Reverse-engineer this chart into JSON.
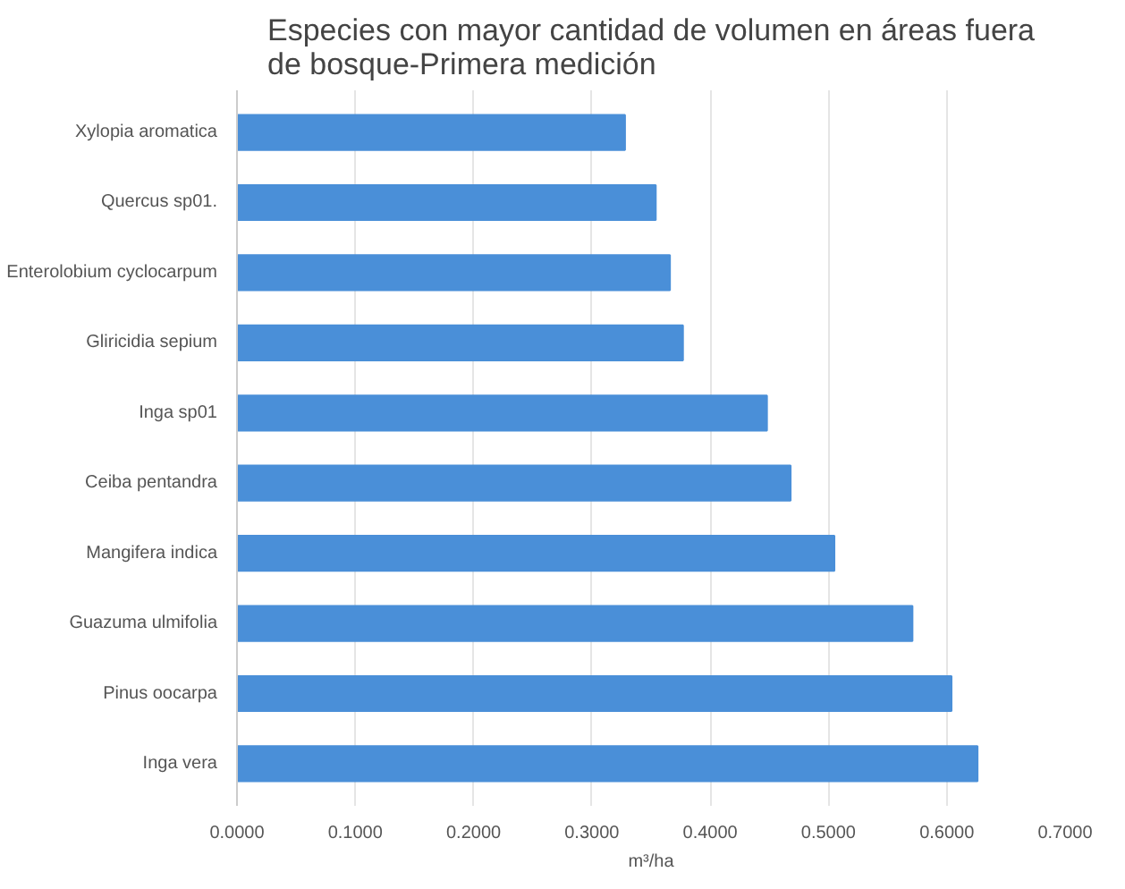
{
  "chart_data": {
    "type": "bar",
    "orientation": "horizontal",
    "title": "Especies con mayor cantidad de volumen en áreas fuera de bosque-Primera medición",
    "categories": [
      "Xylopia aromatica",
      "Quercus sp01.",
      "Enterolobium cyclocarpum",
      "Gliricidia sepium",
      "Inga sp01",
      "Ceiba pentandra",
      "Mangifera indica",
      "Guazuma ulmifolia",
      "Pinus oocarpa",
      "Inga vera"
    ],
    "values": [
      0.328,
      0.354,
      0.366,
      0.377,
      0.448,
      0.468,
      0.505,
      0.571,
      0.604,
      0.626
    ],
    "color": "#4a8fd8",
    "xlabel": "m³/ha",
    "xlim": [
      0,
      0.7
    ],
    "xticks": [
      {
        "value": 0,
        "label": "0.0000"
      },
      {
        "value": 0.1,
        "label": "0.1000"
      },
      {
        "value": 0.2,
        "label": "0.2000"
      },
      {
        "value": 0.3,
        "label": "0.3000"
      },
      {
        "value": 0.4,
        "label": "0.4000"
      },
      {
        "value": 0.5,
        "label": "0.5000"
      },
      {
        "value": 0.6,
        "label": "0.6000"
      },
      {
        "value": 0.7,
        "label": "0.7000"
      }
    ],
    "grid": "x"
  }
}
